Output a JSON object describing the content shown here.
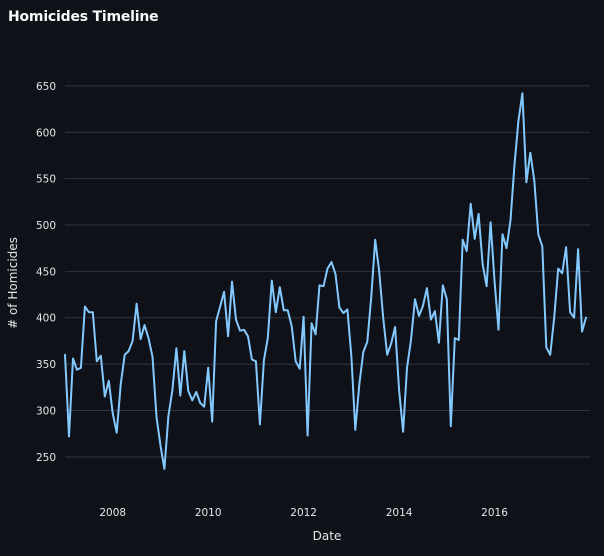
{
  "chart_data": {
    "type": "line",
    "title": "Homicides Timeline",
    "xlabel": "Date",
    "ylabel": "# of Homicides",
    "x_tick_labels": [
      "2008",
      "2010",
      "2012",
      "2014",
      "2016"
    ],
    "y_tick_labels": [
      "250",
      "300",
      "350",
      "400",
      "450",
      "500",
      "550",
      "600",
      "650"
    ],
    "ylim": [
      225,
      665
    ],
    "xlim": [
      "2007-01",
      "2017-12"
    ],
    "grid": true,
    "legend": "none",
    "colors": {
      "background": "#0e1117",
      "line": "#83c9ff",
      "grid": "#31333f",
      "text": "#e6e6e6"
    },
    "series": [
      {
        "x": [
          "2007-01",
          "2007-02",
          "2007-03",
          "2007-04",
          "2007-05",
          "2007-06",
          "2007-07",
          "2007-08",
          "2007-09",
          "2007-10",
          "2007-11",
          "2007-12",
          "2008-01",
          "2008-02",
          "2008-03",
          "2008-04",
          "2008-05",
          "2008-06",
          "2008-07",
          "2008-08",
          "2008-09",
          "2008-10",
          "2008-11",
          "2008-12",
          "2009-01",
          "2009-02",
          "2009-03",
          "2009-04",
          "2009-05",
          "2009-06",
          "2009-07",
          "2009-08",
          "2009-09",
          "2009-10",
          "2009-11",
          "2009-12",
          "2010-01",
          "2010-02",
          "2010-03",
          "2010-04",
          "2010-05",
          "2010-06",
          "2010-07",
          "2010-08",
          "2010-09",
          "2010-10",
          "2010-11",
          "2010-12",
          "2011-01",
          "2011-02",
          "2011-03",
          "2011-04",
          "2011-05",
          "2011-06",
          "2011-07",
          "2011-08",
          "2011-09",
          "2011-10",
          "2011-11",
          "2011-12",
          "2012-01",
          "2012-02",
          "2012-03",
          "2012-04",
          "2012-05",
          "2012-06",
          "2012-07",
          "2012-08",
          "2012-09",
          "2012-10",
          "2012-11",
          "2012-12",
          "2013-01",
          "2013-02",
          "2013-03",
          "2013-04",
          "2013-05",
          "2013-06",
          "2013-07",
          "2013-08",
          "2013-09",
          "2013-10",
          "2013-11",
          "2013-12",
          "2014-01",
          "2014-02",
          "2014-03",
          "2014-04",
          "2014-05",
          "2014-06",
          "2014-07",
          "2014-08",
          "2014-09",
          "2014-10",
          "2014-11",
          "2014-12",
          "2015-01",
          "2015-02",
          "2015-03",
          "2015-04",
          "2015-05",
          "2015-06",
          "2015-07",
          "2015-08",
          "2015-09",
          "2015-10",
          "2015-11",
          "2015-12",
          "2016-01",
          "2016-02",
          "2016-03",
          "2016-04",
          "2016-05",
          "2016-06",
          "2016-07",
          "2016-08",
          "2016-09",
          "2016-10",
          "2016-11",
          "2016-12",
          "2017-01",
          "2017-02",
          "2017-03",
          "2017-04",
          "2017-05",
          "2017-06",
          "2017-07",
          "2017-08",
          "2017-09",
          "2017-10",
          "2017-11",
          "2017-12"
        ],
        "values": [
          360,
          272,
          356,
          344,
          346,
          412,
          406,
          406,
          353,
          359,
          315,
          332,
          297,
          276,
          328,
          360,
          364,
          375,
          415,
          377,
          392,
          378,
          358,
          293,
          262,
          237,
          294,
          322,
          367,
          316,
          364,
          321,
          311,
          320,
          308,
          304,
          346,
          288,
          396,
          412,
          428,
          380,
          439,
          398,
          386,
          387,
          380,
          355,
          353,
          285,
          354,
          378,
          440,
          406,
          433,
          408,
          408,
          391,
          353,
          345,
          401,
          273,
          394,
          382,
          435,
          434,
          453,
          460,
          447,
          411,
          405,
          409,
          358,
          279,
          328,
          363,
          374,
          423,
          484,
          450,
          400,
          360,
          372,
          390,
          322,
          277,
          346,
          376,
          420,
          402,
          413,
          432,
          398,
          407,
          373,
          435,
          420,
          283,
          378,
          376,
          484,
          472,
          523,
          485,
          512,
          458,
          434,
          503,
          440,
          387,
          490,
          475,
          505,
          564,
          612,
          642,
          546,
          578,
          548,
          490,
          477,
          368,
          360,
          400,
          453,
          448,
          476,
          406,
          400,
          474,
          385,
          400
        ]
      }
    ]
  }
}
